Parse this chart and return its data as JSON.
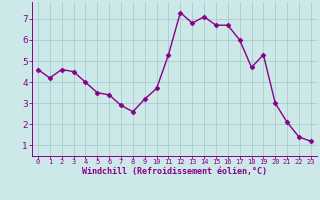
{
  "x": [
    0,
    1,
    2,
    3,
    4,
    5,
    6,
    7,
    8,
    9,
    10,
    11,
    12,
    13,
    14,
    15,
    16,
    17,
    18,
    19,
    20,
    21,
    22,
    23
  ],
  "y": [
    4.6,
    4.2,
    4.6,
    4.5,
    4.0,
    3.5,
    3.4,
    2.9,
    2.6,
    3.2,
    3.7,
    5.3,
    7.3,
    6.8,
    7.1,
    6.7,
    6.7,
    6.0,
    4.7,
    5.3,
    3.0,
    2.1,
    1.4,
    1.2
  ],
  "line_color": "#880088",
  "marker": "D",
  "marker_size": 2.5,
  "bg_color": "#cce8e8",
  "grid_color": "#aacccc",
  "xlabel": "Windchill (Refroidissement éolien,°C)",
  "xlabel_color": "#880088",
  "tick_color": "#880088",
  "ylim": [
    0.5,
    7.8
  ],
  "xlim": [
    -0.5,
    23.5
  ],
  "yticks": [
    1,
    2,
    3,
    4,
    5,
    6,
    7
  ],
  "xticks": [
    0,
    1,
    2,
    3,
    4,
    5,
    6,
    7,
    8,
    9,
    10,
    11,
    12,
    13,
    14,
    15,
    16,
    17,
    18,
    19,
    20,
    21,
    22,
    23
  ],
  "spine_color": "#880088",
  "linewidth": 1.0,
  "xlabel_fontsize": 6.0,
  "xtick_fontsize": 5.0,
  "ytick_fontsize": 6.5
}
